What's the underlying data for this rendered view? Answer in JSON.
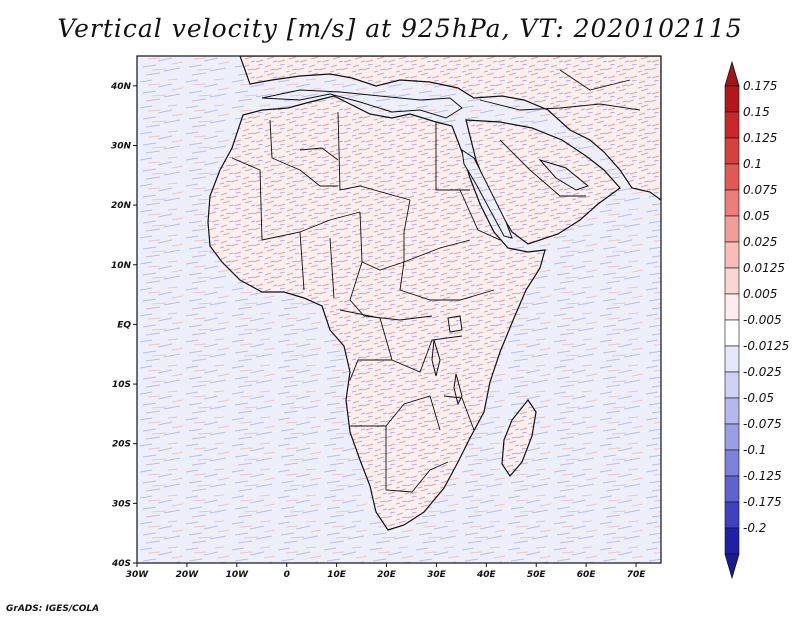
{
  "title": "Vertical velocity [m/s] at 925hPa, VT: 2020102115",
  "credit": "GrADS: IGES/COLA",
  "map": {
    "lon_range": [
      -30,
      75
    ],
    "lat_range": [
      -40,
      45
    ],
    "lon_ticks": [
      {
        "value": -30,
        "label": "30W"
      },
      {
        "value": -20,
        "label": "20W"
      },
      {
        "value": -10,
        "label": "10W"
      },
      {
        "value": 0,
        "label": "0"
      },
      {
        "value": 10,
        "label": "10E"
      },
      {
        "value": 20,
        "label": "20E"
      },
      {
        "value": 30,
        "label": "30E"
      },
      {
        "value": 40,
        "label": "40E"
      },
      {
        "value": 50,
        "label": "50E"
      },
      {
        "value": 60,
        "label": "60E"
      },
      {
        "value": 70,
        "label": "70E"
      }
    ],
    "lat_ticks": [
      {
        "value": 40,
        "label": "40N"
      },
      {
        "value": 30,
        "label": "30N"
      },
      {
        "value": 20,
        "label": "20N"
      },
      {
        "value": 10,
        "label": "10N"
      },
      {
        "value": 0,
        "label": "EQ"
      },
      {
        "value": -10,
        "label": "10S"
      },
      {
        "value": -20,
        "label": "20S"
      },
      {
        "value": -30,
        "label": "30S"
      },
      {
        "value": -40,
        "label": "40S"
      }
    ]
  },
  "colorbar": {
    "levels": [
      {
        "label": "0.175",
        "color": "#b2181b"
      },
      {
        "label": "0.15",
        "color": "#c8282a"
      },
      {
        "label": "0.125",
        "color": "#d6403f"
      },
      {
        "label": "0.1",
        "color": "#e25a57"
      },
      {
        "label": "0.075",
        "color": "#ec7d78"
      },
      {
        "label": "0.05",
        "color": "#f29e98"
      },
      {
        "label": "0.025",
        "color": "#f7bdb8"
      },
      {
        "label": "0.0125",
        "color": "#fad6d2"
      },
      {
        "label": "0.005",
        "color": "#fdeceb"
      },
      {
        "label": "-0.005",
        "color": "#ffffff"
      },
      {
        "label": "-0.0125",
        "color": "#e6e8fa"
      },
      {
        "label": "-0.025",
        "color": "#cfd2f5"
      },
      {
        "label": "-0.05",
        "color": "#b4b8ef"
      },
      {
        "label": "-0.075",
        "color": "#9a9ee7"
      },
      {
        "label": "-0.1",
        "color": "#7d82dd"
      },
      {
        "label": "-0.125",
        "color": "#5f63d0"
      },
      {
        "label": "-0.175",
        "color": "#3f41be"
      },
      {
        "label": "-0.2",
        "color": "#2020a6"
      }
    ],
    "top_arrow_color": "#a11418",
    "bottom_arrow_color": "#1a1a94"
  },
  "colors": {
    "ocean_base": "#eef0fb",
    "land_base": "#fbeff0",
    "outline": "#111111"
  }
}
